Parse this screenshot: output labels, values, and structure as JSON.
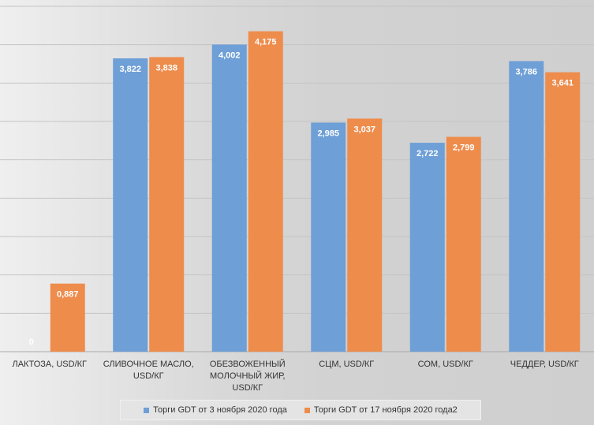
{
  "chart_data": {
    "type": "bar",
    "categories": [
      [
        "ЛАКТОЗА, USD/КГ"
      ],
      [
        "СЛИВОЧНОЕ МАСЛО,",
        "USD/КГ"
      ],
      [
        "ОБЕЗВОЖЕННЫЙ",
        "МОЛОЧНЫЙ ЖИР,",
        "USD/КГ"
      ],
      [
        "СЦМ,  USD/КГ"
      ],
      [
        "СОМ, USD/КГ"
      ],
      [
        "ЧЕДДЕР,  USD/КГ"
      ]
    ],
    "series": [
      {
        "name": "Торги GDT от 3 ноября 2020 года",
        "color": "#6e9fd6",
        "values": [
          0,
          3.822,
          4.002,
          2.985,
          2.722,
          3.786
        ],
        "labels": [
          "0",
          "3,822",
          "4,002",
          "2,985",
          "2,722",
          "3,786"
        ]
      },
      {
        "name": "Торги GDT от 17 ноября 2020 года2",
        "color": "#ee8c4c",
        "values": [
          0.887,
          3.838,
          4.175,
          3.037,
          2.799,
          3.641
        ],
        "labels": [
          "0,887",
          "3,838",
          "4,175",
          "3,037",
          "2,799",
          "3,641"
        ]
      }
    ],
    "ylim": [
      0,
      4.5
    ],
    "grid": true,
    "legend_position": "bottom"
  }
}
